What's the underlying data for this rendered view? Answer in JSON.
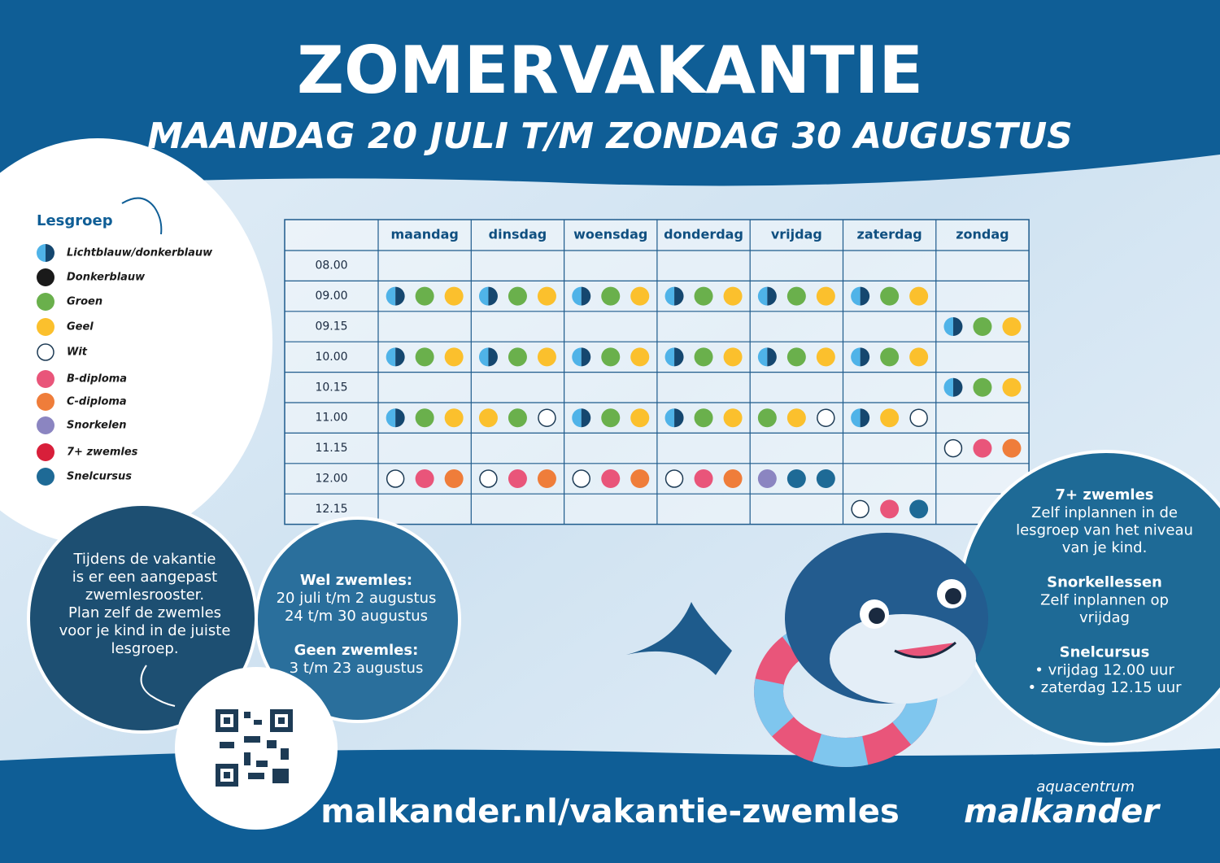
{
  "header": {
    "title": "ZOMERVAKANTIE",
    "subtitle": "MAANDAG 20 JULI T/M ZONDAG 30 AUGUSTUS"
  },
  "legend": {
    "title": "Lesgroep",
    "items": [
      {
        "label": "Lichtblauw/donkerblauw",
        "color": "#4fb3e8",
        "color2": "#15476f"
      },
      {
        "label": "Donkerblauw",
        "color": "#1a1a1a"
      },
      {
        "label": "Groen",
        "color": "#6ab04c"
      },
      {
        "label": "Geel",
        "color": "#fbc02d"
      },
      {
        "label": "Wit",
        "color": "#ffffff"
      },
      {
        "label": "B-diploma",
        "color": "#e9557a"
      },
      {
        "label": "C-diploma",
        "color": "#ef7d3a"
      },
      {
        "label": "Snorkelen",
        "color": "#8b85c1"
      },
      {
        "label": "7+ zwemles",
        "color": "#d81f3a"
      },
      {
        "label": "Snelcursus",
        "color": "#1e6a96"
      }
    ]
  },
  "table": {
    "days": [
      "maandag",
      "dinsdag",
      "woensdag",
      "donderdag",
      "vrijdag",
      "zaterdag",
      "zondag"
    ],
    "rows": [
      {
        "time": "08.00",
        "cells": [
          [],
          [],
          [],
          [],
          [],
          [],
          []
        ]
      },
      {
        "time": "09.00",
        "cells": [
          [
            "Lichtblauw/donkerblauw",
            "Groen",
            "Geel"
          ],
          [
            "Lichtblauw/donkerblauw",
            "Groen",
            "Geel"
          ],
          [
            "Lichtblauw/donkerblauw",
            "Groen",
            "Geel"
          ],
          [
            "Lichtblauw/donkerblauw",
            "Groen",
            "Geel"
          ],
          [
            "Lichtblauw/donkerblauw",
            "Groen",
            "Geel"
          ],
          [
            "Lichtblauw/donkerblauw",
            "Groen",
            "Geel"
          ],
          []
        ]
      },
      {
        "time": "09.15",
        "cells": [
          [],
          [],
          [],
          [],
          [],
          [],
          [
            "Lichtblauw/donkerblauw",
            "Groen",
            "Geel"
          ]
        ]
      },
      {
        "time": "10.00",
        "cells": [
          [
            "Lichtblauw/donkerblauw",
            "Groen",
            "Geel"
          ],
          [
            "Lichtblauw/donkerblauw",
            "Groen",
            "Geel"
          ],
          [
            "Lichtblauw/donkerblauw",
            "Groen",
            "Geel"
          ],
          [
            "Lichtblauw/donkerblauw",
            "Groen",
            "Geel"
          ],
          [
            "Lichtblauw/donkerblauw",
            "Groen",
            "Geel"
          ],
          [
            "Lichtblauw/donkerblauw",
            "Groen",
            "Geel"
          ],
          []
        ]
      },
      {
        "time": "10.15",
        "cells": [
          [],
          [],
          [],
          [],
          [],
          [],
          [
            "Lichtblauw/donkerblauw",
            "Groen",
            "Geel"
          ]
        ]
      },
      {
        "time": "11.00",
        "cells": [
          [
            "Lichtblauw/donkerblauw",
            "Groen",
            "Geel"
          ],
          [
            "Geel",
            "Groen",
            "Wit"
          ],
          [
            "Lichtblauw/donkerblauw",
            "Groen",
            "Geel"
          ],
          [
            "Lichtblauw/donkerblauw",
            "Groen",
            "Geel"
          ],
          [
            "Groen",
            "Geel",
            "Wit"
          ],
          [
            "Lichtblauw/donkerblauw",
            "Geel",
            "Wit"
          ],
          []
        ]
      },
      {
        "time": "11.15",
        "cells": [
          [],
          [],
          [],
          [],
          [],
          [],
          [
            "Wit",
            "B-diploma",
            "C-diploma"
          ]
        ]
      },
      {
        "time": "12.00",
        "cells": [
          [
            "Wit",
            "B-diploma",
            "C-diploma"
          ],
          [
            "Wit",
            "B-diploma",
            "C-diploma"
          ],
          [
            "Wit",
            "B-diploma",
            "C-diploma"
          ],
          [
            "Wit",
            "B-diploma",
            "C-diploma"
          ],
          [
            "Snorkelen",
            "Snelcursus",
            "Snelcursus"
          ],
          [],
          []
        ]
      },
      {
        "time": "12.15",
        "cells": [
          [],
          [],
          [],
          [],
          [],
          [
            "Wit",
            "B-diploma",
            "Snelcursus"
          ],
          []
        ]
      }
    ]
  },
  "info_left": {
    "lines": [
      "Tijdens de vakantie",
      "is er een aangepast",
      "zwemlesrooster.",
      "Plan zelf de zwemles",
      "voor je kind in de juiste",
      "lesgroep."
    ]
  },
  "info_middle": {
    "wel_title": "Wel zwemles:",
    "wel_lines": [
      "20 juli t/m 2 augustus",
      "24 t/m 30 augustus"
    ],
    "geen_title": "Geen zwemles:",
    "geen_lines": [
      "3 t/m 23 augustus"
    ]
  },
  "info_right": {
    "sections": [
      {
        "title": "7+ zwemles",
        "lines": [
          "Zelf inplannen in de",
          "lesgroep van het niveau",
          "van je kind."
        ]
      },
      {
        "title": "Snorkellessen",
        "lines": [
          "Zelf inplannen op",
          "vrijdag"
        ]
      },
      {
        "title": "Snelcursus",
        "lines": [
          "• vrijdag 12.00 uur",
          "• zaterdag 12.15 uur"
        ]
      }
    ]
  },
  "footer": {
    "url": "malkander.nl/vakantie-zwemles",
    "logo_small": "aquacentrum",
    "logo": "malkander"
  }
}
